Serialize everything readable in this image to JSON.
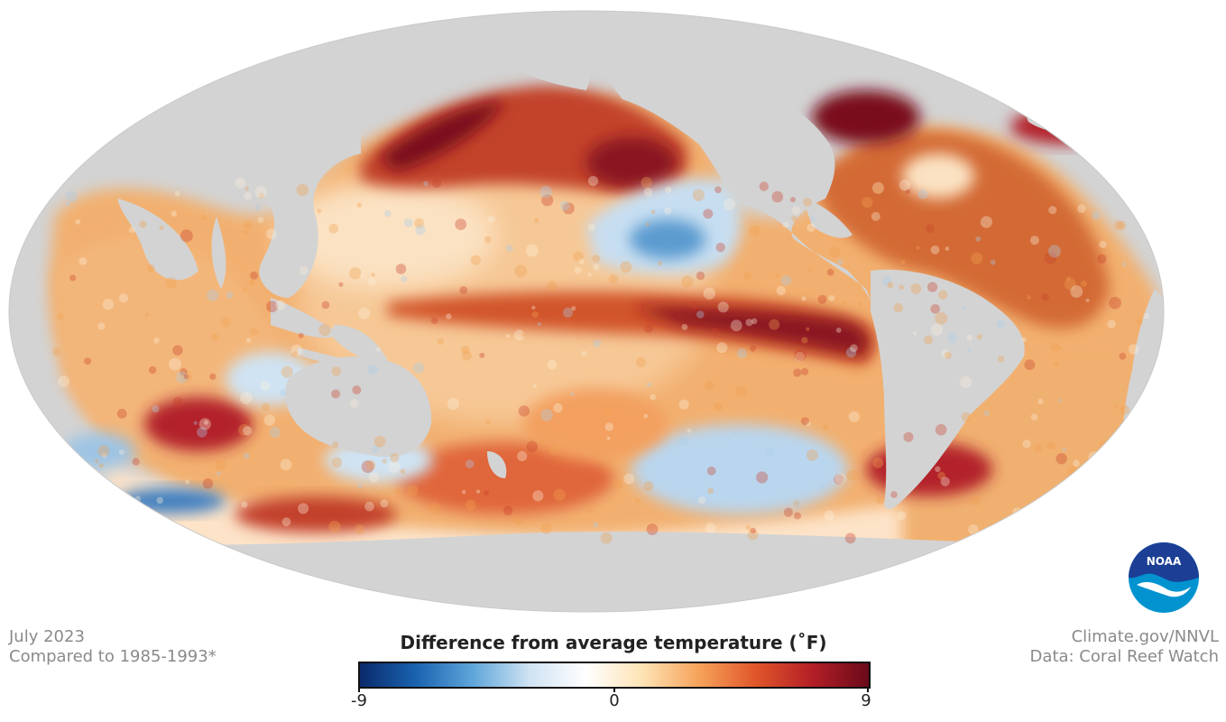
{
  "meta_left": {
    "line1": "July 2023",
    "line2": "Compared to 1985-1993*"
  },
  "meta_right": {
    "line1": "Climate.gov/NNVL",
    "line2": "Data: Coral Reef Watch"
  },
  "legend": {
    "title": "Difference from average temperature (˚F)",
    "min_label": "-9",
    "mid_label": "0",
    "max_label": "9",
    "min": -9,
    "max": 9,
    "colors": [
      "#0a2a6b",
      "#1a63b0",
      "#5fa6da",
      "#cfe3f3",
      "#ffffff",
      "#fde3b4",
      "#f6a25a",
      "#e0562a",
      "#b31f26",
      "#6a0a1a"
    ]
  },
  "map": {
    "projection": "Mollweide, Pacific-centered",
    "land_color": "#d3d3d3",
    "anomaly_colors": {
      "strong_warm": "#7a0a1c",
      "warm": "#c8402a",
      "mild_warm": "#f0a050",
      "near_zero": "#fdf1dc",
      "cool": "#a9cdea",
      "strong_cool": "#2d74b8"
    }
  },
  "logo": {
    "text": "NOAA",
    "colors": {
      "top": "#1c3f95",
      "bottom": "#0093d0"
    }
  }
}
